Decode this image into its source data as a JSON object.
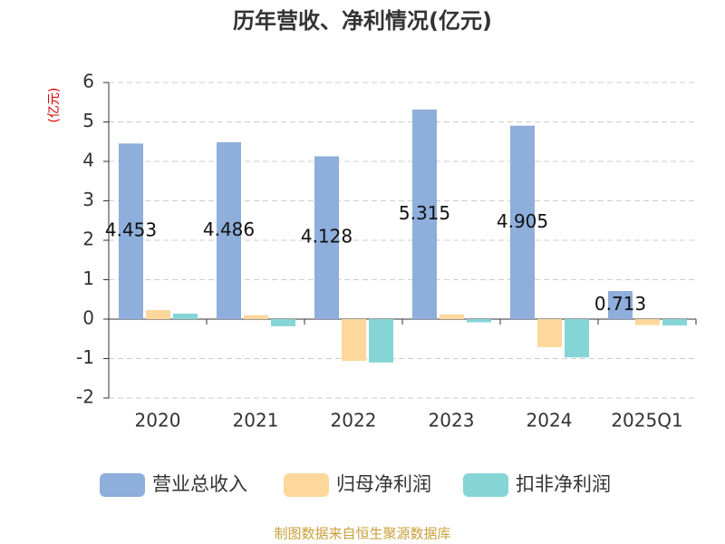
{
  "chart_data": {
    "type": "bar",
    "title": "历年营收、净利情况(亿元)",
    "y_label": "(亿元)",
    "categories": [
      "2020",
      "2021",
      "2022",
      "2023",
      "2024",
      "2025Q1"
    ],
    "series": [
      {
        "name": "营业总收入",
        "color": "#8eaedb",
        "values": [
          4.453,
          4.486,
          4.128,
          5.315,
          4.905,
          0.713
        ],
        "data_labels": true
      },
      {
        "name": "归母净利润",
        "color": "#fdd79b",
        "values": [
          0.23,
          0.1,
          -1.06,
          0.12,
          -0.71,
          -0.15
        ],
        "data_labels": false
      },
      {
        "name": "扣非净利润",
        "color": "#85d5d6",
        "values": [
          0.14,
          -0.18,
          -1.1,
          -0.08,
          -0.97,
          -0.16
        ],
        "data_labels": false
      }
    ],
    "ylim": [
      -2,
      6
    ],
    "yticks": [
      -2,
      -1,
      0,
      1,
      2,
      3,
      4,
      5,
      6
    ],
    "grid": true,
    "legend": "bottom",
    "source": "制图数据来自恒生聚源数据库"
  }
}
